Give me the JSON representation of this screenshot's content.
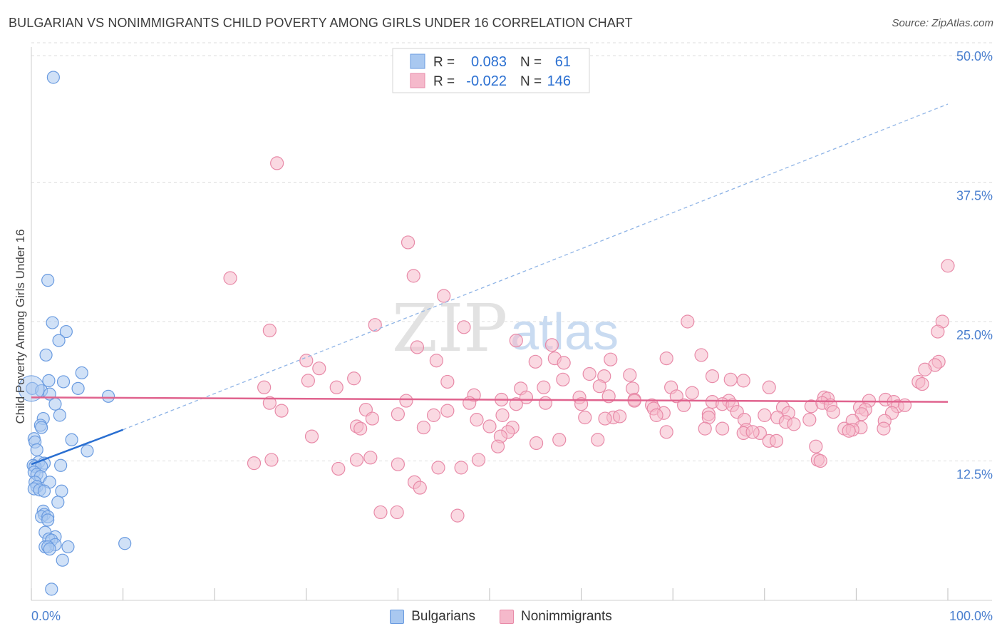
{
  "title": "BULGARIAN VS NONIMMIGRANTS CHILD POVERTY AMONG GIRLS UNDER 16 CORRELATION CHART",
  "source": "Source: ZipAtlas.com",
  "watermark": {
    "zip": "ZIP",
    "atlas": "atlas"
  },
  "legend_box": {
    "rows": [
      {
        "r_label": "R =",
        "r_value": "0.083",
        "n_label": "N =",
        "n_value": "61"
      },
      {
        "r_label": "R =",
        "r_value": "-0.022",
        "n_label": "N =",
        "n_value": "146"
      }
    ]
  },
  "bottom_legend": [
    "Bulgarians",
    "Nonimmigrants"
  ],
  "chart_data": {
    "type": "scatter",
    "title": "BULGARIAN VS NONIMMIGRANTS CHILD POVERTY AMONG GIRLS UNDER 16 CORRELATION CHART",
    "xlabel": "",
    "ylabel": "Child Poverty Among Girls Under 16",
    "xlim": [
      0,
      100
    ],
    "ylim": [
      0,
      50
    ],
    "x_tick_labels": [
      "0.0%",
      "100.0%"
    ],
    "y_ticks": [
      12.5,
      25.0,
      37.5,
      50.0
    ],
    "y_tick_labels": [
      "12.5%",
      "25.0%",
      "37.5%",
      "50.0%"
    ],
    "grid": "horizontal dashed",
    "legend_placement": "top-center",
    "colors": {
      "bulgarians_fill": "#a9c8f0",
      "bulgarians_stroke": "#6a9be0",
      "bulgarians_line": "#2a6fd1",
      "nonimmigrants_fill": "#f5b9cb",
      "nonimmigrants_stroke": "#e88aa8",
      "nonimmigrants_line": "#e0638e",
      "value_text": "#2a6fd1"
    },
    "series": [
      {
        "name": "Bulgarians",
        "r": 0.083,
        "n": 61,
        "trend": {
          "x0": 0,
          "y0": 12.2,
          "x1": 10,
          "y1": 15.3,
          "dashed_to_x": 100,
          "dashed_to_y": 44.5
        },
        "points": [
          [
            0.1,
            19.0
          ],
          [
            2.4,
            46.9
          ],
          [
            1.8,
            28.7
          ],
          [
            2.3,
            24.9
          ],
          [
            3.8,
            24.1
          ],
          [
            3.0,
            23.3
          ],
          [
            1.6,
            22.0
          ],
          [
            5.5,
            20.4
          ],
          [
            1.9,
            19.7
          ],
          [
            3.5,
            19.6
          ],
          [
            5.1,
            19.0
          ],
          [
            1.1,
            18.8
          ],
          [
            2.0,
            18.5
          ],
          [
            8.4,
            18.3
          ],
          [
            2.6,
            17.6
          ],
          [
            3.1,
            16.6
          ],
          [
            1.3,
            16.3
          ],
          [
            1.0,
            15.7
          ],
          [
            1.1,
            15.5
          ],
          [
            0.3,
            14.5
          ],
          [
            0.4,
            14.2
          ],
          [
            4.4,
            14.4
          ],
          [
            0.6,
            13.5
          ],
          [
            6.1,
            13.4
          ],
          [
            0.8,
            12.4
          ],
          [
            1.4,
            12.3
          ],
          [
            0.2,
            12.1
          ],
          [
            0.4,
            12.0
          ],
          [
            1.1,
            12.0
          ],
          [
            3.2,
            12.1
          ],
          [
            0.3,
            11.5
          ],
          [
            0.6,
            11.3
          ],
          [
            1.0,
            11.1
          ],
          [
            0.4,
            10.6
          ],
          [
            2.0,
            10.6
          ],
          [
            0.6,
            10.2
          ],
          [
            0.3,
            10.0
          ],
          [
            0.9,
            9.9
          ],
          [
            1.4,
            9.8
          ],
          [
            3.3,
            9.8
          ],
          [
            2.9,
            8.8
          ],
          [
            1.3,
            8.0
          ],
          [
            1.4,
            7.7
          ],
          [
            1.1,
            7.5
          ],
          [
            1.8,
            7.5
          ],
          [
            1.8,
            7.2
          ],
          [
            1.5,
            6.1
          ],
          [
            2.6,
            5.7
          ],
          [
            1.9,
            5.5
          ],
          [
            2.2,
            5.4
          ],
          [
            2.6,
            5.0
          ],
          [
            1.5,
            4.8
          ],
          [
            1.8,
            4.8
          ],
          [
            2.0,
            4.6
          ],
          [
            4.0,
            4.8
          ],
          [
            10.2,
            5.1
          ],
          [
            3.4,
            3.6
          ],
          [
            2.2,
            1.0
          ]
        ]
      },
      {
        "name": "Nonimmigrants",
        "r": -0.022,
        "n": 146,
        "trend": {
          "x0": 0,
          "y0": 18.2,
          "x1": 100,
          "y1": 17.8
        },
        "points": [
          [
            26.8,
            39.2
          ],
          [
            41.1,
            32.1
          ],
          [
            21.7,
            28.9
          ],
          [
            41.7,
            29.1
          ],
          [
            100,
            30.0
          ],
          [
            45.0,
            27.3
          ],
          [
            37.5,
            24.7
          ],
          [
            47.2,
            24.5
          ],
          [
            26.0,
            24.2
          ],
          [
            71.6,
            25.0
          ],
          [
            99.4,
            25.0
          ],
          [
            98.9,
            24.1
          ],
          [
            52.9,
            23.3
          ],
          [
            56.8,
            22.9
          ],
          [
            42.1,
            22.7
          ],
          [
            73.1,
            22.0
          ],
          [
            57.1,
            21.7
          ],
          [
            69.3,
            21.7
          ],
          [
            30.0,
            21.5
          ],
          [
            44.2,
            21.5
          ],
          [
            55.0,
            21.4
          ],
          [
            58.1,
            21.3
          ],
          [
            63.2,
            21.6
          ],
          [
            99.0,
            21.4
          ],
          [
            98.6,
            21.1
          ],
          [
            31.4,
            20.8
          ],
          [
            97.5,
            20.7
          ],
          [
            60.9,
            20.3
          ],
          [
            62.5,
            20.1
          ],
          [
            65.3,
            20.2
          ],
          [
            74.3,
            20.1
          ],
          [
            76.3,
            19.8
          ],
          [
            96.8,
            19.6
          ],
          [
            35.2,
            19.9
          ],
          [
            30.2,
            19.7
          ],
          [
            45.4,
            19.6
          ],
          [
            58.0,
            19.8
          ],
          [
            77.7,
            19.7
          ],
          [
            97.2,
            19.4
          ],
          [
            25.4,
            19.1
          ],
          [
            33.3,
            19.1
          ],
          [
            53.4,
            19.0
          ],
          [
            55.9,
            19.1
          ],
          [
            62.0,
            19.2
          ],
          [
            65.6,
            19.0
          ],
          [
            69.8,
            19.1
          ],
          [
            80.5,
            19.1
          ],
          [
            72.1,
            18.6
          ],
          [
            48.3,
            18.4
          ],
          [
            59.8,
            18.2
          ],
          [
            65.8,
            18.0
          ],
          [
            54.0,
            18.2
          ],
          [
            63.0,
            18.3
          ],
          [
            70.4,
            18.3
          ],
          [
            76.1,
            17.9
          ],
          [
            86.5,
            18.2
          ],
          [
            86.9,
            18.1
          ],
          [
            40.9,
            17.9
          ],
          [
            51.3,
            18.0
          ],
          [
            65.8,
            17.9
          ],
          [
            67.7,
            17.5
          ],
          [
            74.3,
            17.8
          ],
          [
            75.4,
            17.6
          ],
          [
            91.4,
            17.9
          ],
          [
            93.2,
            18.0
          ],
          [
            94.1,
            17.8
          ],
          [
            26.0,
            17.7
          ],
          [
            47.8,
            17.7
          ],
          [
            52.9,
            17.6
          ],
          [
            56.1,
            17.7
          ],
          [
            60.0,
            17.6
          ],
          [
            71.2,
            17.5
          ],
          [
            76.5,
            17.5
          ],
          [
            82.0,
            17.3
          ],
          [
            85.1,
            17.4
          ],
          [
            86.3,
            17.7
          ],
          [
            87.2,
            17.5
          ],
          [
            90.4,
            17.3
          ],
          [
            91.0,
            17.1
          ],
          [
            94.5,
            17.4
          ],
          [
            95.3,
            17.5
          ],
          [
            36.5,
            17.1
          ],
          [
            27.3,
            17.0
          ],
          [
            45.4,
            17.0
          ],
          [
            67.9,
            17.2
          ],
          [
            69.0,
            16.8
          ],
          [
            73.9,
            16.7
          ],
          [
            77.0,
            16.9
          ],
          [
            82.6,
            16.8
          ],
          [
            87.5,
            16.9
          ],
          [
            90.6,
            16.7
          ],
          [
            93.9,
            16.8
          ],
          [
            40.0,
            16.7
          ],
          [
            43.9,
            16.6
          ],
          [
            51.4,
            16.6
          ],
          [
            60.4,
            16.4
          ],
          [
            63.5,
            16.4
          ],
          [
            64.2,
            16.5
          ],
          [
            68.2,
            16.6
          ],
          [
            80.0,
            16.6
          ],
          [
            81.4,
            16.4
          ],
          [
            84.9,
            16.2
          ],
          [
            89.6,
            16.1
          ],
          [
            62.6,
            16.3
          ],
          [
            37.2,
            16.3
          ],
          [
            48.6,
            16.2
          ],
          [
            73.9,
            16.4
          ],
          [
            77.8,
            16.2
          ],
          [
            82.3,
            16.0
          ],
          [
            83.2,
            15.8
          ],
          [
            93.1,
            16.1
          ],
          [
            35.5,
            15.6
          ],
          [
            42.8,
            15.5
          ],
          [
            50.0,
            15.6
          ],
          [
            52.5,
            15.5
          ],
          [
            73.5,
            15.4
          ],
          [
            75.4,
            15.4
          ],
          [
            78.0,
            15.3
          ],
          [
            88.7,
            15.4
          ],
          [
            90.5,
            15.5
          ],
          [
            93.0,
            15.4
          ],
          [
            35.9,
            15.4
          ],
          [
            30.6,
            14.7
          ],
          [
            52.0,
            15.1
          ],
          [
            69.3,
            15.1
          ],
          [
            77.7,
            15.0
          ],
          [
            79.5,
            15.0
          ],
          [
            89.6,
            15.3
          ],
          [
            89.2,
            15.2
          ],
          [
            78.7,
            15.1
          ],
          [
            51.2,
            14.7
          ],
          [
            55.1,
            14.1
          ],
          [
            57.6,
            14.4
          ],
          [
            61.8,
            14.4
          ],
          [
            80.5,
            14.3
          ],
          [
            81.3,
            14.3
          ],
          [
            85.6,
            13.8
          ],
          [
            50.9,
            13.8
          ],
          [
            37.0,
            12.8
          ],
          [
            48.8,
            12.6
          ],
          [
            35.5,
            12.6
          ],
          [
            26.2,
            12.6
          ],
          [
            24.3,
            12.3
          ],
          [
            40.0,
            12.2
          ],
          [
            85.8,
            12.6
          ],
          [
            86.1,
            12.5
          ],
          [
            33.5,
            11.8
          ],
          [
            44.4,
            11.9
          ],
          [
            46.9,
            11.9
          ],
          [
            41.8,
            10.6
          ],
          [
            42.4,
            10.1
          ],
          [
            38.1,
            7.9
          ],
          [
            39.9,
            7.9
          ],
          [
            46.5,
            7.6
          ]
        ]
      }
    ]
  }
}
